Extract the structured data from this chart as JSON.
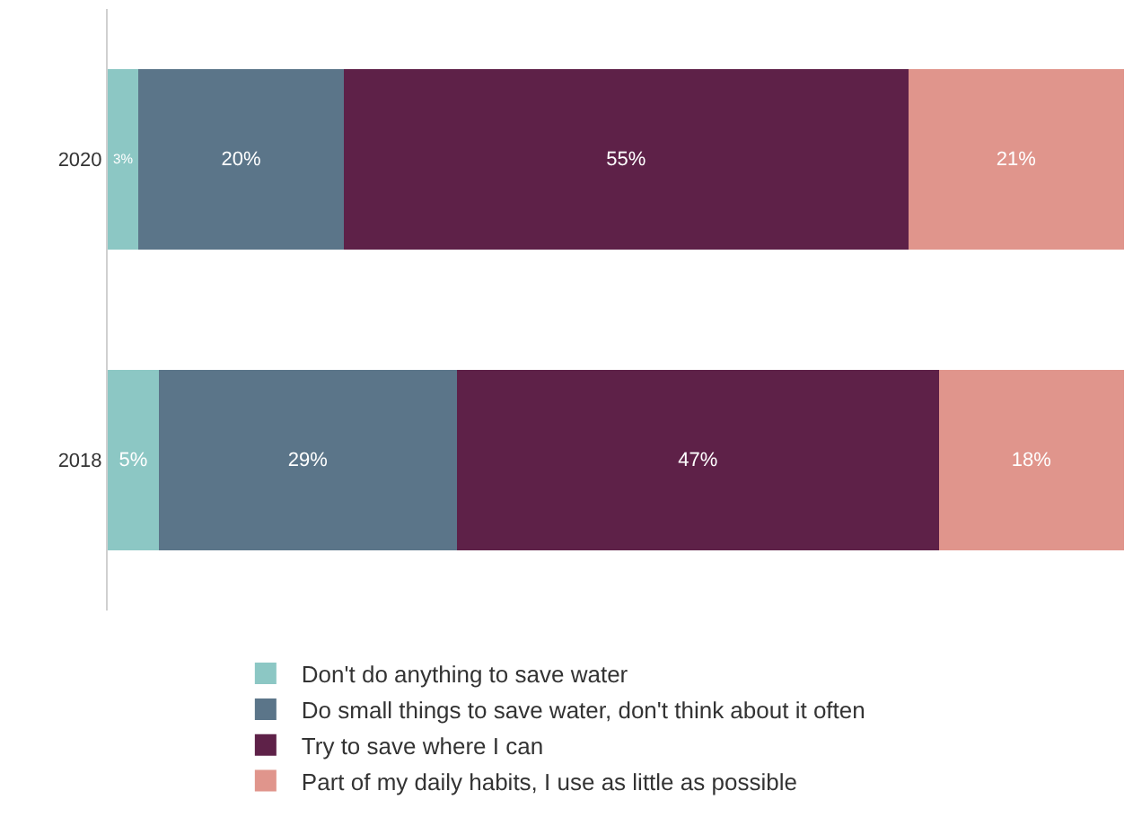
{
  "chart_data": {
    "type": "bar",
    "orientation": "horizontal",
    "stacked": true,
    "categories": [
      "2020",
      "2018"
    ],
    "xlim": [
      0,
      99
    ],
    "tick_labels": "y",
    "legend": "bottom",
    "series": [
      {
        "name": "Don't do anything to save water",
        "color": "#8cc7c4",
        "values": [
          3,
          5
        ],
        "value_labels": [
          "3%",
          "5%"
        ]
      },
      {
        "name": "Do small things to save water, don't think about it often",
        "color": "#5b7589",
        "values": [
          20,
          29
        ],
        "value_labels": [
          "20%",
          "29%"
        ]
      },
      {
        "name": "Try to save where I can",
        "color": "#5e2148",
        "values": [
          55,
          47
        ],
        "value_labels": [
          "55%",
          "47%"
        ]
      },
      {
        "name": "Part of my daily habits, I use as little as possible",
        "color": "#e0958c",
        "values": [
          21,
          18
        ],
        "value_labels": [
          "21%",
          "18%"
        ]
      }
    ]
  }
}
